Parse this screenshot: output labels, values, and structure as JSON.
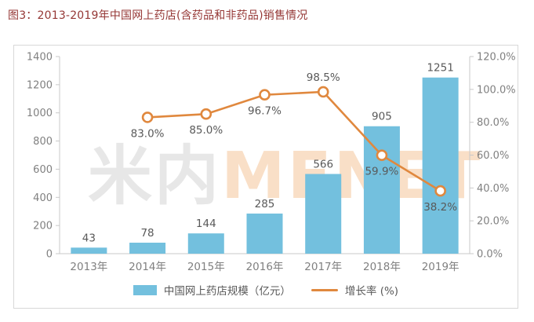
{
  "title": "图3：2013-2019年中国网上药店(含药品和非药品)销售情况",
  "watermark": {
    "cn": "米内",
    "en": "MENET"
  },
  "colors": {
    "bar": "#73C0DE",
    "line": "#E0883E",
    "marker_fill": "#FFFFFF",
    "axis_line": "#C9C9C9",
    "tick_label": "#808080",
    "data_label": "#595959",
    "title": "#953735",
    "card_border": "#D8D8D8",
    "watermark_cn": "#E7E7E7",
    "watermark_en": "#F9DFC7",
    "legend_text": "#595959"
  },
  "chart_data": {
    "type": "bar",
    "subtype": "bar + line combo with dual y-axes",
    "title": "图3：2013-2019年中国网上药店(含药品和非药品)销售情况",
    "categories": [
      "2013年",
      "2014年",
      "2015年",
      "2016年",
      "2017年",
      "2018年",
      "2019年"
    ],
    "series": [
      {
        "name": "中国网上药店规模（亿元）",
        "type": "bar",
        "axis": "left",
        "values": [
          43,
          78,
          144,
          285,
          566,
          905,
          1251
        ]
      },
      {
        "name": "增长率 (%)",
        "type": "line",
        "axis": "right",
        "values": [
          null,
          83.0,
          85.0,
          96.7,
          98.5,
          59.9,
          38.2
        ]
      }
    ],
    "bar_value_labels": [
      "43",
      "78",
      "144",
      "285",
      "566",
      "905",
      "1251"
    ],
    "line_value_labels": [
      null,
      "83.0%",
      "85.0%",
      "96.7%",
      "98.5%",
      "59.9%",
      "38.2%"
    ],
    "left_axis": {
      "min": 0,
      "max": 1400,
      "step": 200,
      "ticks": [
        "0",
        "200",
        "400",
        "600",
        "800",
        "1000",
        "1200",
        "1400"
      ]
    },
    "right_axis": {
      "min": 0,
      "max": 120,
      "step": 20,
      "ticks": [
        "0.0%",
        "20.0%",
        "40.0%",
        "60.0%",
        "80.0%",
        "100.0%",
        "120.0%"
      ]
    },
    "grid": false,
    "legend_position": "bottom"
  }
}
